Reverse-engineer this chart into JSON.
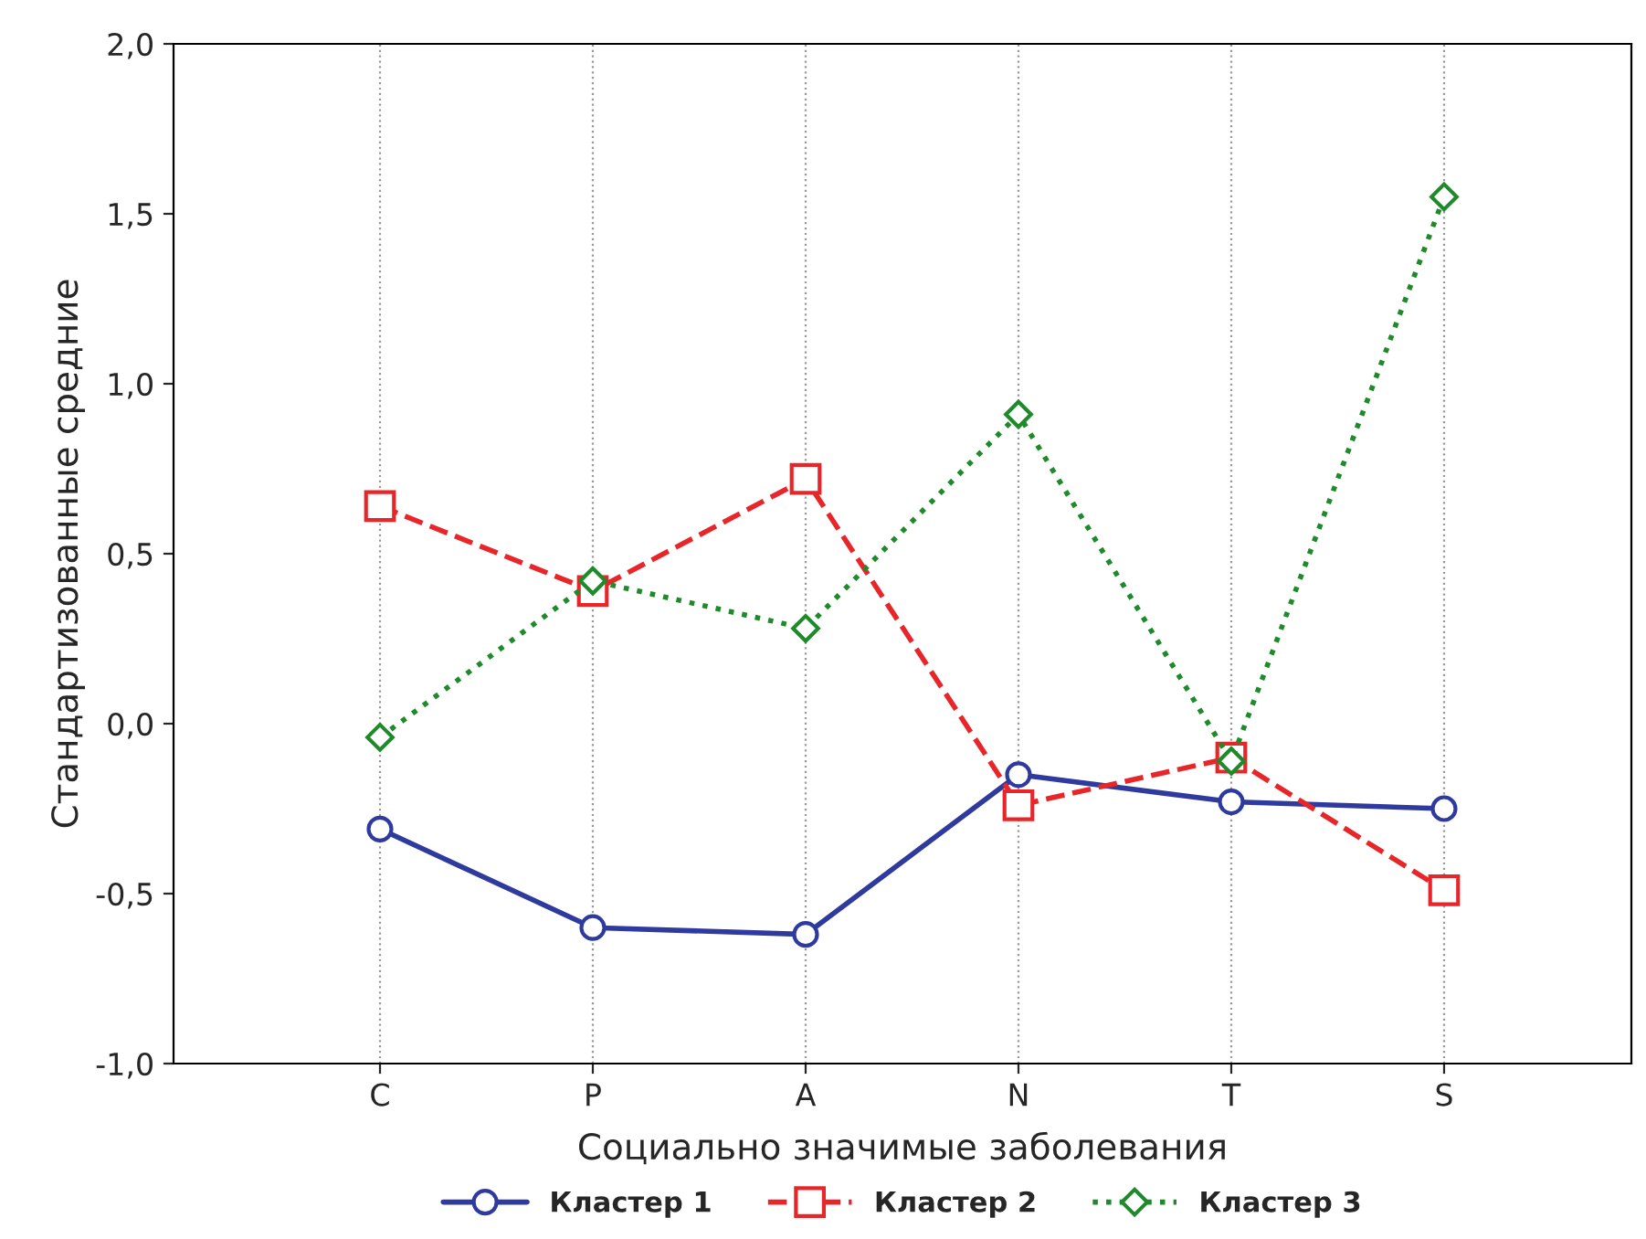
{
  "chart_data": {
    "type": "line",
    "xlabel": "Социально значимые заболевания",
    "ylabel": "Стандартизованные средние",
    "categories": [
      "C",
      "P",
      "A",
      "N",
      "T",
      "S"
    ],
    "series": [
      {
        "name": "Кластер 1",
        "color": "#2e3a9e",
        "marker": "circle",
        "line_style": "solid",
        "values": [
          -0.31,
          -0.6,
          -0.62,
          -0.15,
          -0.23,
          -0.25
        ]
      },
      {
        "name": "Кластер 2",
        "color": "#e8262a",
        "marker": "square",
        "line_style": "dashed",
        "values": [
          0.64,
          0.39,
          0.72,
          -0.24,
          -0.1,
          -0.49
        ]
      },
      {
        "name": "Кластер 3",
        "color": "#1e8a2a",
        "marker": "diamond",
        "line_style": "dotted",
        "values": [
          -0.04,
          0.42,
          0.28,
          0.91,
          -0.11,
          1.55
        ]
      }
    ],
    "ylim": [
      -1.0,
      2.0
    ],
    "yticks": [
      {
        "value": -1.0,
        "label": "-1,0"
      },
      {
        "value": -0.5,
        "label": "-0,5"
      },
      {
        "value": 0.0,
        "label": "0,0"
      },
      {
        "value": 0.5,
        "label": "0,5"
      },
      {
        "value": 1.0,
        "label": "1,0"
      },
      {
        "value": 1.5,
        "label": "1,5"
      },
      {
        "value": 2.0,
        "label": "2,0"
      }
    ],
    "grid": "x",
    "legend": "bottom"
  }
}
